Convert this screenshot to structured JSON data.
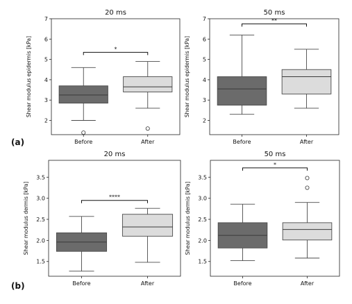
{
  "panel_labels": [
    "(a)",
    "(b)"
  ],
  "colors": {
    "before": "#6b6b6b",
    "after": "#dcdcdc",
    "edge": "#4a4a4a",
    "axis": "#222222"
  },
  "chart_data": [
    {
      "type": "box",
      "title": "20 ms",
      "ylabel": "Shear modulus epidermis [kPa]",
      "ylim": [
        1.3,
        7.0
      ],
      "yticks": [
        2,
        3,
        4,
        5,
        6,
        7
      ],
      "categories": [
        "Before",
        "After"
      ],
      "boxes": [
        {
          "label": "Before",
          "whislo": 2.0,
          "q1": 2.85,
          "med": 3.25,
          "q3": 3.7,
          "whishi": 4.6,
          "fliers": [
            1.4
          ]
        },
        {
          "label": "After",
          "whislo": 2.6,
          "q1": 3.4,
          "med": 3.65,
          "q3": 4.15,
          "whishi": 4.9,
          "fliers": [
            1.6
          ]
        }
      ],
      "significance": {
        "text": "*",
        "y": 5.35
      }
    },
    {
      "type": "box",
      "title": "50 ms",
      "ylabel": "Shear modulus epidermis [kPa]",
      "ylim": [
        1.3,
        7.0
      ],
      "yticks": [
        2,
        3,
        4,
        5,
        6,
        7
      ],
      "categories": [
        "Before",
        "After"
      ],
      "boxes": [
        {
          "label": "Before",
          "whislo": 2.3,
          "q1": 2.75,
          "med": 3.55,
          "q3": 4.15,
          "whishi": 6.2,
          "fliers": []
        },
        {
          "label": "After",
          "whislo": 2.6,
          "q1": 3.3,
          "med": 4.15,
          "q3": 4.5,
          "whishi": 5.5,
          "fliers": []
        }
      ],
      "significance": {
        "text": "**",
        "y": 6.75
      }
    },
    {
      "type": "box",
      "title": "20 ms",
      "ylabel": "Shear modulus dermis [kPa]",
      "ylim": [
        1.15,
        3.9
      ],
      "yticks": [
        1.5,
        2.0,
        2.5,
        3.0,
        3.5
      ],
      "categories": [
        "Before",
        "After"
      ],
      "boxes": [
        {
          "label": "Before",
          "whislo": 1.27,
          "q1": 1.74,
          "med": 1.96,
          "q3": 2.18,
          "whishi": 2.57,
          "fliers": []
        },
        {
          "label": "After",
          "whislo": 1.48,
          "q1": 2.1,
          "med": 2.32,
          "q3": 2.62,
          "whishi": 2.76,
          "fliers": []
        }
      ],
      "significance": {
        "text": "****",
        "y": 2.95
      }
    },
    {
      "type": "box",
      "title": "50 ms",
      "ylabel": "Shear modulus dermis [kPa]",
      "ylim": [
        1.15,
        3.9
      ],
      "yticks": [
        1.5,
        2.0,
        2.5,
        3.0,
        3.5
      ],
      "categories": [
        "Before",
        "After"
      ],
      "boxes": [
        {
          "label": "Before",
          "whislo": 1.52,
          "q1": 1.82,
          "med": 2.12,
          "q3": 2.42,
          "whishi": 2.86,
          "fliers": []
        },
        {
          "label": "After",
          "whislo": 1.58,
          "q1": 2.01,
          "med": 2.26,
          "q3": 2.42,
          "whishi": 2.9,
          "fliers": [
            3.25,
            3.48
          ]
        }
      ],
      "significance": {
        "text": "*",
        "y": 3.72
      }
    }
  ]
}
